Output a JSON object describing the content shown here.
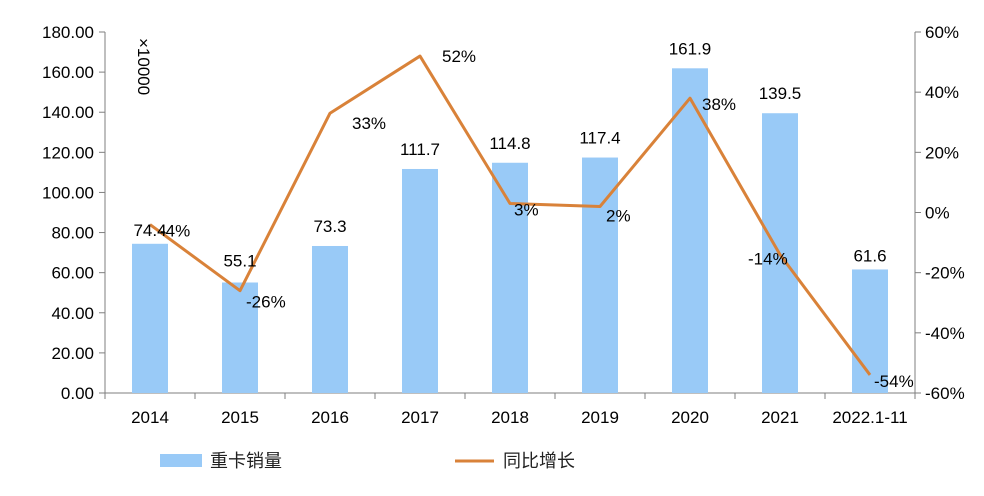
{
  "chart_data": {
    "type": "bar+line",
    "categories": [
      "2014",
      "2015",
      "2016",
      "2017",
      "2018",
      "2019",
      "2020",
      "2021",
      "2022.1-11"
    ],
    "series": [
      {
        "name": "重卡销量",
        "type": "bar",
        "axis": "left",
        "color": "#99caf7",
        "values": [
          74.4,
          55.1,
          73.3,
          111.7,
          114.8,
          117.4,
          161.9,
          139.5,
          61.6
        ],
        "labels": [
          "74.4",
          "55.1",
          "73.3",
          "111.7",
          "114.8",
          "117.4",
          "161.9",
          "139.5",
          "61.6"
        ]
      },
      {
        "name": "同比增长",
        "type": "line",
        "axis": "right",
        "color": "#d98239",
        "values": [
          -4,
          -26,
          33,
          52,
          3,
          2,
          38,
          -14,
          -54
        ],
        "labels": [
          "-4%",
          "-26%",
          "33%",
          "52%",
          "3%",
          "2%",
          "38%",
          "-14%",
          "-54%"
        ]
      }
    ],
    "y_left": {
      "min": 0,
      "max": 180,
      "step": 20,
      "ticks": [
        "0.00",
        "20.00",
        "40.00",
        "60.00",
        "80.00",
        "100.00",
        "120.00",
        "140.00",
        "160.00",
        "180.00"
      ],
      "unit_label": "×10000"
    },
    "y_right": {
      "min": -60,
      "max": 60,
      "step": 20,
      "ticks": [
        "-60%",
        "-40%",
        "-20%",
        "0%",
        "20%",
        "40%",
        "60%"
      ]
    },
    "grid": false,
    "legend_position": "bottom"
  }
}
